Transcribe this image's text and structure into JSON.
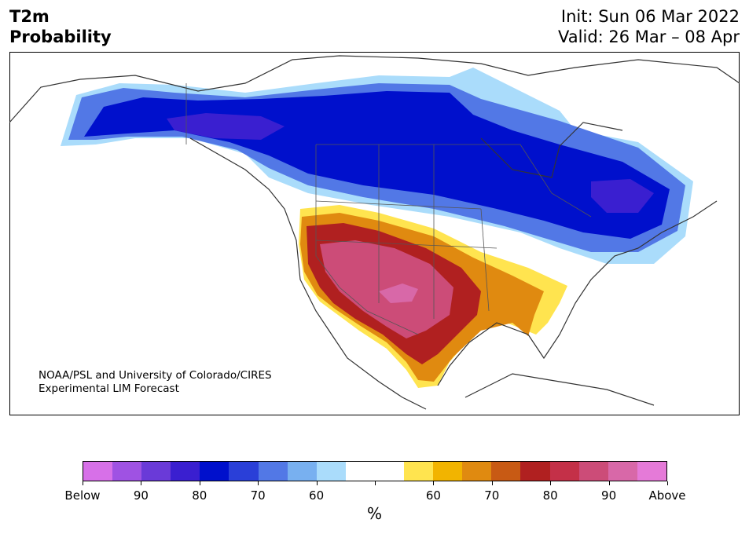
{
  "header": {
    "title_line1": "T2m",
    "title_line2": "Probability",
    "init": "Init: Sun 06 Mar 2022",
    "valid": "Valid: 26 Mar – 08 Apr"
  },
  "credit": {
    "line1": "NOAA/PSL and University of Colorado/CIRES",
    "line2": "Experimental LIM Forecast"
  },
  "colorbar": {
    "colors": [
      "#d770e8",
      "#9f52e3",
      "#6a3ad8",
      "#3a1fd0",
      "#0010cc",
      "#2a3fd8",
      "#5278e6",
      "#78b0f0",
      "#aadcfb",
      "#ffffff",
      "#ffffff",
      "#ffe44f",
      "#f2b400",
      "#e08a10",
      "#c85a14",
      "#b02020",
      "#c43048",
      "#cc4c78",
      "#d868a8",
      "#e57ad8"
    ],
    "labels": [
      "Below",
      "90",
      "80",
      "70",
      "60",
      "",
      "60",
      "70",
      "80",
      "90",
      "Above"
    ],
    "unit": "%"
  },
  "legend_colors": {
    "below_90": "#9f52e3",
    "below_80": "#3a1fd0",
    "below_70": "#2a3fd8",
    "below_60": "#78b0f0",
    "above_60": "#f2b400",
    "above_70": "#c85a14",
    "above_80": "#c43048",
    "above_90": "#d868a8"
  }
}
